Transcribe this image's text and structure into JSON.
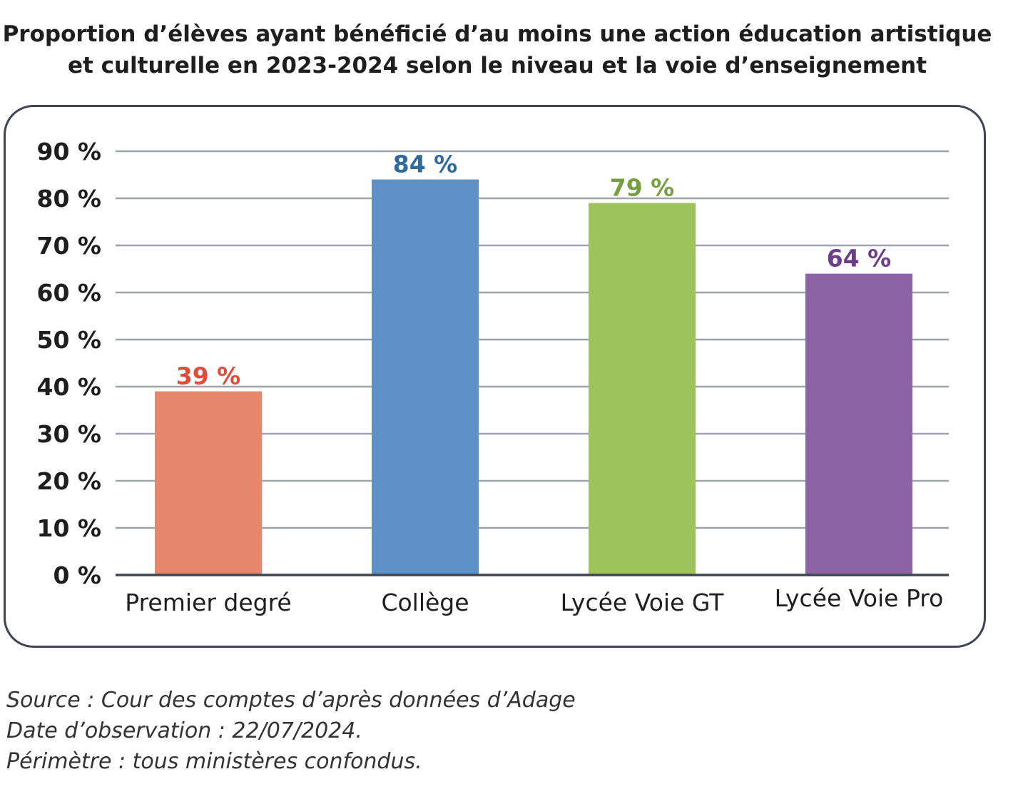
{
  "chart_data": {
    "type": "bar",
    "title_lines": [
      "Proportion d’élèves ayant bénéficié d’au moins une action éducation artistique",
      "et culturelle en 2023-2024 selon le niveau et la voie d’enseignement"
    ],
    "categories": [
      "Premier degré",
      "Collège",
      "Lycée Voie GT",
      "Lycée Voie Pro"
    ],
    "values": [
      39,
      84,
      79,
      64
    ],
    "data_labels": [
      "39 %",
      "84 %",
      "79 %",
      "64 %"
    ],
    "bar_colors": [
      "#e5866d",
      "#5e92c7",
      "#9dc45b",
      "#8a64a4"
    ],
    "label_colors": [
      "#e04b3a",
      "#2e6aa0",
      "#76a03f",
      "#6c3d8a"
    ],
    "yticks": [
      0,
      10,
      20,
      30,
      40,
      50,
      60,
      70,
      80,
      90
    ],
    "ytick_labels": [
      "0 %",
      "10 %",
      "20 %",
      "30 %",
      "40 %",
      "50 %",
      "60 %",
      "70 %",
      "80 %",
      "90 %"
    ],
    "ylim": [
      0,
      90
    ],
    "grid": true,
    "xlabel": "",
    "ylabel": ""
  },
  "notes": [
    "Source : Cour des comptes d’après données d’Adage",
    "Date d’observation : 22/07/2024.",
    "Périmètre : tous ministères confondus."
  ]
}
